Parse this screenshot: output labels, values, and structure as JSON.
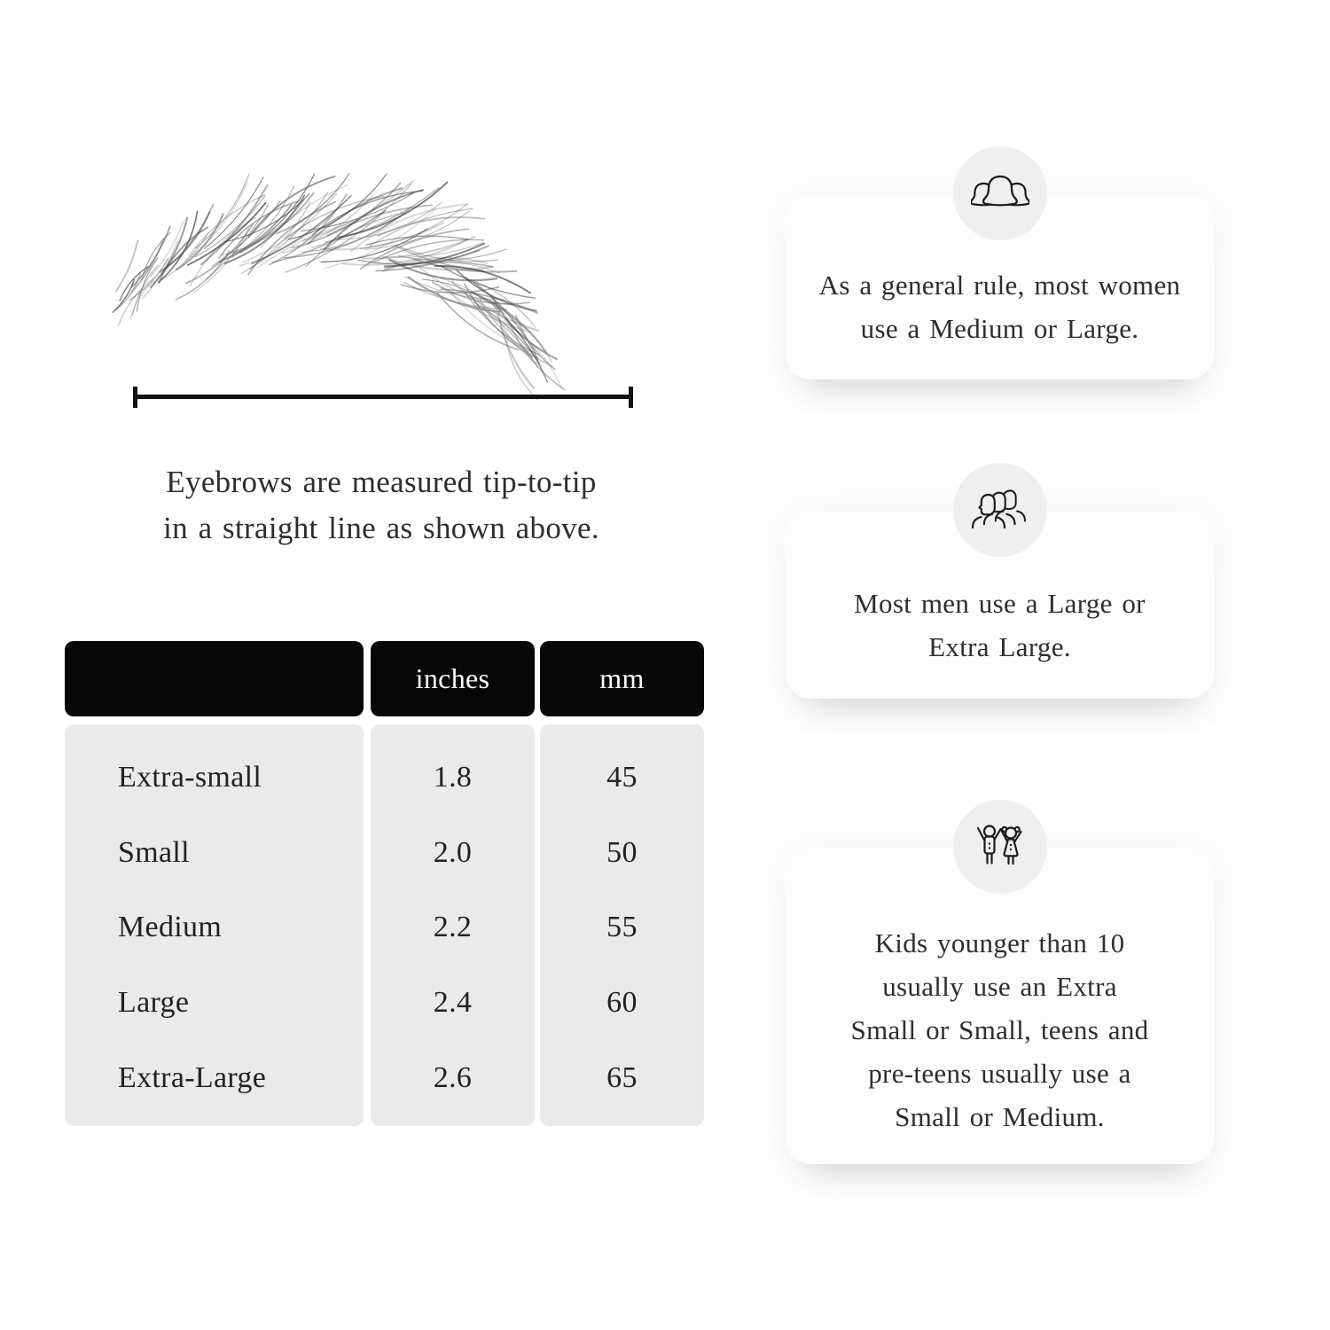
{
  "colors": {
    "page_bg": "#ffffff",
    "body_text": "#2e2e2e",
    "table_header_bg": "#070707",
    "table_header_text": "#ffffff",
    "table_body_bg": "#eaeaea",
    "card_bg": "#fdfdfd",
    "badge_bg": "#efefef",
    "measurement_line": "#121212"
  },
  "measurement_diagram": {
    "caption_text": "Eyebrows are measured tip-to-tip in a straight line as shown above.",
    "caption_lines": [
      "Eyebrows are measured tip-to-tip",
      "in a straight line as shown above."
    ]
  },
  "size_table": {
    "columns": [
      "",
      "inches",
      "mm"
    ],
    "rows": [
      {
        "size": "Extra-small",
        "inches": "1.8",
        "mm": "45"
      },
      {
        "size": "Small",
        "inches": "2.0",
        "mm": "50"
      },
      {
        "size": "Medium",
        "inches": "2.2",
        "mm": "55"
      },
      {
        "size": "Large",
        "inches": "2.4",
        "mm": "60"
      },
      {
        "size": "Extra-Large",
        "inches": "2.6",
        "mm": "65"
      }
    ]
  },
  "info_cards": [
    {
      "icon": "women-group-icon",
      "text": "As a general rule, most women use a Medium or Large.",
      "lines": [
        "As a general rule, most women",
        "use a Medium or Large."
      ]
    },
    {
      "icon": "men-group-icon",
      "text": "Most men use a Large or Extra Large.",
      "lines": [
        "Most men use a Large or",
        "Extra Large."
      ]
    },
    {
      "icon": "kids-icon",
      "text": "Kids younger than 10 usually use an Extra Small or Small, teens and pre-teens usually use a Small or Medium.",
      "lines": [
        "Kids younger than 10",
        "usually use an Extra",
        "Small or Small, teens and",
        "pre-teens usually use a",
        "Small or Medium."
      ]
    }
  ]
}
